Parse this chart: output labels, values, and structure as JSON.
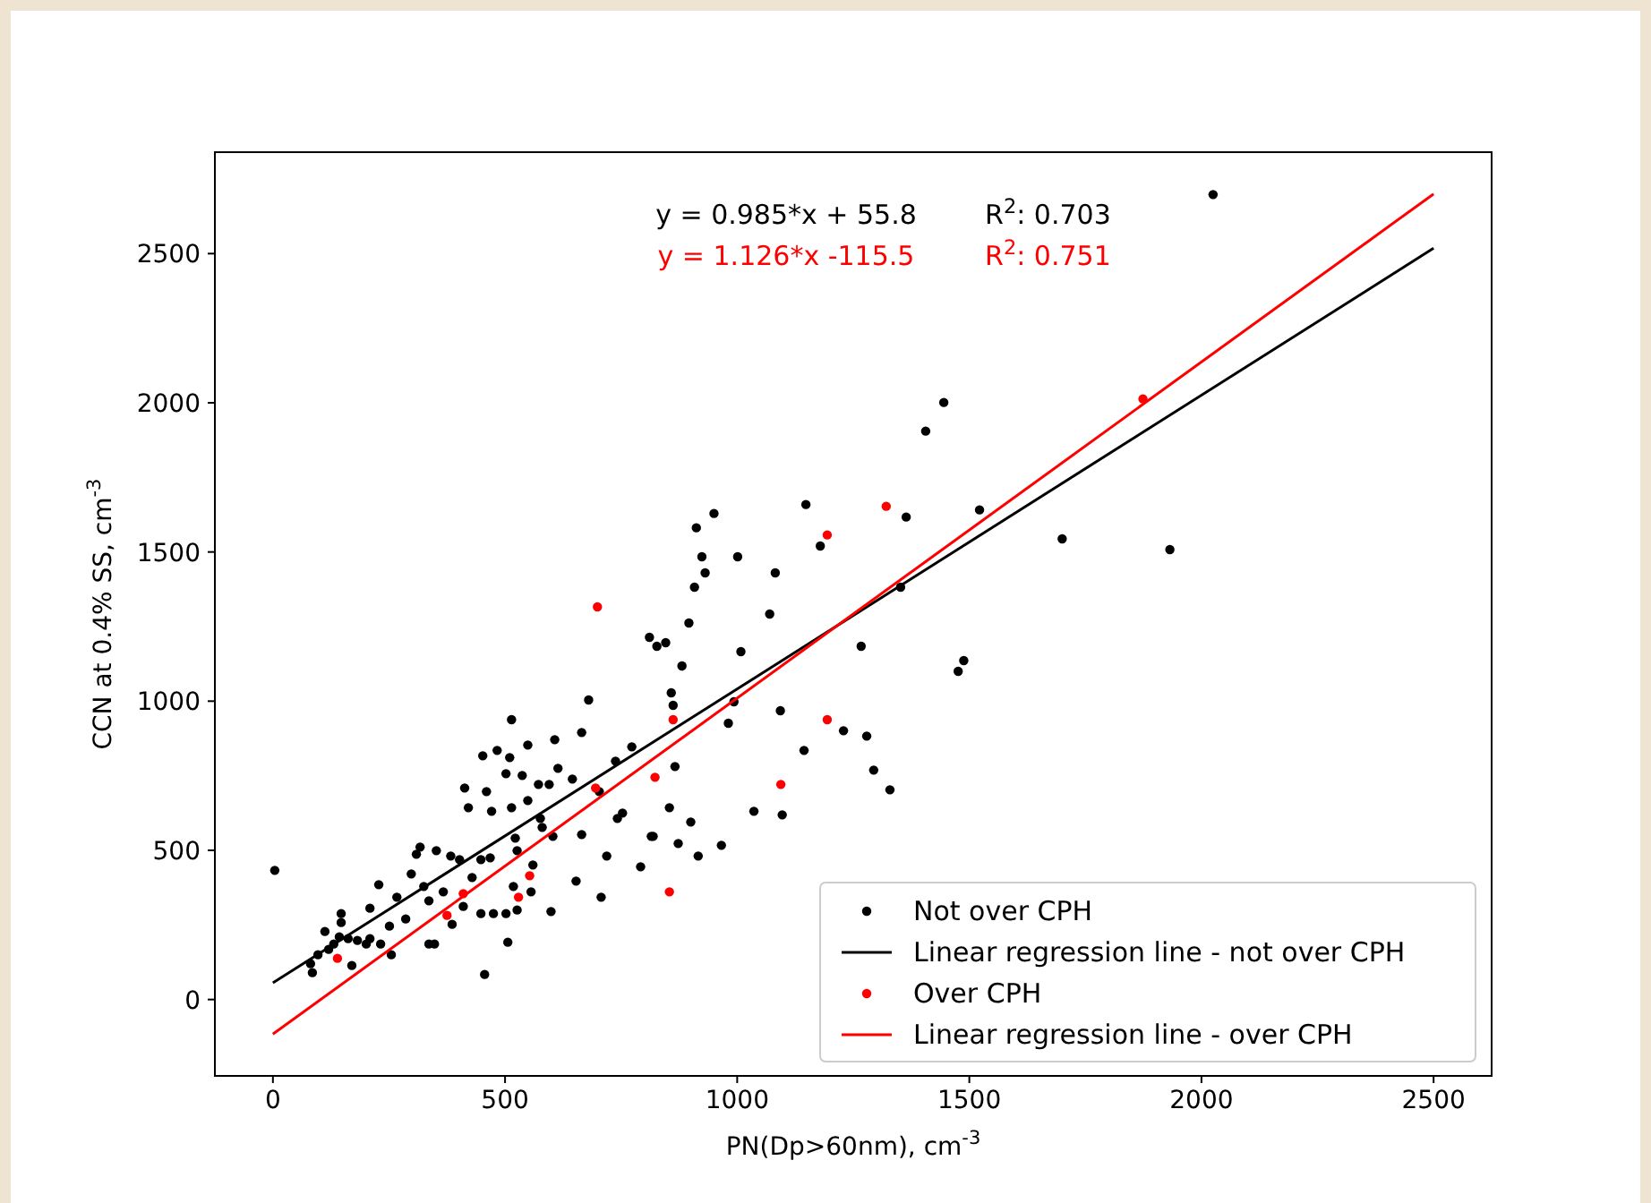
{
  "chart_data": {
    "type": "scatter",
    "xlabel": "PN(Dp>60nm), cm$^{-3}$",
    "ylabel": "CCN at 0.4% SS, cm$^{-3}$",
    "xlim": [
      -125,
      2625
    ],
    "ylim": [
      -256,
      2840
    ],
    "xticks": [
      0,
      500,
      1000,
      1500,
      2000,
      2500
    ],
    "yticks": [
      0,
      500,
      1000,
      1500,
      2000,
      2500
    ],
    "legend": "bottom right",
    "marker": "circle",
    "annotations": [
      "y = 0.985*x + 55.8",
      "R$^{2}$: 0.703",
      "y = 1.126*x -115.5",
      "R$^{2}$: 0.751"
    ],
    "series": [
      {
        "name": "Not over CPH",
        "color": "#000000",
        "x": [
          1445,
          1406,
          1522,
          1364,
          1148,
          1179,
          1352,
          950,
          912,
          924,
          1001,
          931,
          1082,
          908,
          896,
          1070,
          811,
          827,
          846,
          1008,
          1267,
          881,
          1488,
          1476,
          858,
          862,
          993,
          981,
          1093,
          866,
          1144,
          1229,
          1279,
          1294,
          1329,
          854,
          900,
          1036,
          1097,
          815,
          873,
          916,
          966,
          2025,
          1932,
          1700,
          680,
          514,
          549,
          607,
          665,
          452,
          483,
          510,
          614,
          502,
          537,
          413,
          460,
          572,
          595,
          645,
          703,
          421,
          471,
          514,
          549,
          576,
          665,
          738,
          773,
          742,
          753,
          819,
          317,
          309,
          352,
          383,
          402,
          228,
          267,
          298,
          325,
          336,
          367,
          429,
          448,
          468,
          522,
          526,
          560,
          518,
          556,
          580,
          603,
          719,
          792,
          653,
          707,
          599,
          506,
          456,
          448,
          475,
          502,
          526,
          386,
          410,
          336,
          348,
          286,
          251,
          255,
          209,
          147,
          112,
          143,
          162,
          182,
          201,
          170,
          85,
          97,
          147,
          4,
          209,
          232,
          131,
          120,
          81
        ],
        "values": [
          2001,
          1905,
          1641,
          1617,
          1659,
          1520,
          1382,
          1629,
          1581,
          1484,
          1484,
          1430,
          1430,
          1382,
          1262,
          1292,
          1214,
          1184,
          1196,
          1166,
          1184,
          1118,
          1136,
          1100,
          1028,
          986,
          998,
          926,
          968,
          781,
          835,
          901,
          883,
          769,
          703,
          643,
          595,
          631,
          619,
          547,
          523,
          481,
          517,
          2698,
          1508,
          1544,
          1004,
          938,
          853,
          871,
          895,
          817,
          835,
          811,
          775,
          757,
          751,
          709,
          697,
          721,
          721,
          739,
          697,
          643,
          631,
          643,
          667,
          607,
          553,
          799,
          847,
          607,
          625,
          547,
          511,
          487,
          499,
          481,
          469,
          385,
          343,
          421,
          379,
          331,
          361,
          409,
          469,
          475,
          541,
          499,
          451,
          379,
          361,
          577,
          547,
          481,
          445,
          397,
          343,
          295,
          192,
          84,
          288,
          288,
          288,
          300,
          252,
          312,
          186,
          186,
          270,
          246,
          150,
          306,
          288,
          228,
          210,
          204,
          198,
          186,
          114,
          90,
          150,
          258,
          433,
          204,
          186,
          186,
          168,
          120
        ]
      },
      {
        "name": "Linear regression line - not over CPH",
        "type": "line",
        "color": "#000000",
        "marker": "none",
        "x": [
          0,
          2500
        ],
        "values": [
          56,
          2518
        ]
      },
      {
        "name": "Over CPH",
        "color": "#ff0000",
        "x": [
          139,
          375,
          410,
          529,
          553,
          823,
          862,
          1094,
          1194,
          854,
          1194,
          1321,
          1874,
          699,
          695
        ],
        "values": [
          138,
          282,
          355,
          343,
          415,
          745,
          938,
          721,
          938,
          361,
          1557,
          1653,
          2013,
          1316,
          709
        ]
      },
      {
        "name": "Linear regression line - over CPH",
        "type": "line",
        "color": "#ff0000",
        "marker": "none",
        "x": [
          0,
          2500
        ],
        "values": [
          -116,
          2700
        ]
      }
    ]
  }
}
